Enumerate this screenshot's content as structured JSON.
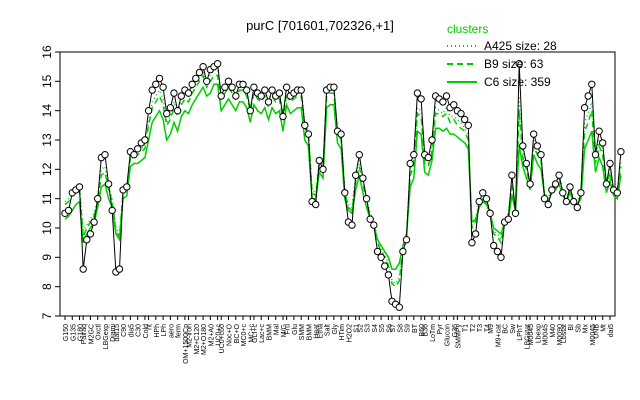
{
  "chart_data": {
    "type": "line",
    "title": "purC [701601,702326,+1]",
    "xlabel": "",
    "ylabel": "",
    "ylim": [
      7,
      16
    ],
    "yticks": [
      7,
      8,
      9,
      10,
      11,
      12,
      13,
      14,
      15,
      16
    ],
    "x_tick_labels": [
      "G150",
      "G135",
      "G180",
      "Pairaq",
      "M2GC",
      "Oxctl",
      "LBGexp",
      "Diami",
      "dat15",
      "C90",
      "dia5",
      "C30",
      "Cold",
      "nt",
      "HPh",
      "LPh",
      "aero",
      "ferm",
      "OM+1500Cp",
      "M2-iron",
      "M2+C120",
      "M2+O180",
      "M2+A0",
      "UC0+c",
      "UC0+c60",
      "Noc+O",
      "BC+O",
      "MC0+c",
      "MC+c",
      "GLI+c",
      "Lac+c",
      "BMM",
      "Mal",
      "M/G",
      "Fru",
      "Glu",
      "SMM",
      "BMM",
      "Heat",
      "Etha",
      "Salt",
      "Gly",
      "HTim",
      "H2O2",
      "S1",
      "S2",
      "S3",
      "S4",
      "S5",
      "S6",
      "S7",
      "S8",
      "S9",
      "BT",
      "B60",
      "B36",
      "LoTm",
      "Pyr",
      "Glucon",
      "G36",
      "SMMPy",
      "T1",
      "T2",
      "T3",
      "T4",
      "M9",
      "M9+cat",
      "BC",
      "Sw",
      "LPhT",
      "LBGstat",
      "M0045",
      "Lbexp",
      "M0045",
      "M40",
      "M0090",
      "Lbstat",
      "BI",
      "Sb",
      "Mx",
      "M0045",
      "UNB",
      "Mt",
      "dai5"
    ],
    "legend": {
      "title": "clusters",
      "placement": "top-right",
      "entries": [
        {
          "label": "A425 size: 28",
          "style": "dotted"
        },
        {
          "label": "B9 size: 63",
          "style": "dashed"
        },
        {
          "label": "C6 size: 359",
          "style": "solid"
        }
      ]
    },
    "colors": {
      "series": "#00cc00",
      "points": "#000000",
      "background": "#ffffff"
    },
    "n_conditions": 151,
    "series": [
      {
        "name": "purC",
        "role": "gene",
        "values": [
          10.5,
          10.6,
          11.2,
          11.3,
          11.4,
          8.6,
          9.6,
          9.8,
          10.2,
          11.0,
          12.4,
          12.5,
          11.5,
          10.6,
          8.5,
          8.6,
          11.3,
          11.4,
          12.6,
          12.5,
          12.7,
          12.9,
          13.0,
          14.0,
          14.7,
          14.9,
          15.1,
          14.8,
          13.9,
          14.1,
          14.6,
          14.0,
          14.5,
          14.7,
          14.6,
          14.9,
          15.1,
          15.3,
          15.5,
          15.0,
          15.4,
          15.5,
          15.6,
          14.5,
          14.8,
          15.0,
          14.8,
          14.5,
          14.9,
          14.9,
          14.7,
          14.0,
          14.8,
          14.6,
          14.5,
          14.7,
          14.3,
          14.7,
          14.5,
          14.6,
          13.8,
          14.8,
          14.5,
          14.6,
          14.7,
          14.7,
          13.5,
          13.2,
          10.9,
          10.8,
          12.3,
          12.0,
          14.7,
          14.8,
          14.8,
          13.3,
          13.2,
          11.2,
          10.2,
          10.1,
          11.8,
          12.5,
          11.7,
          11.0,
          10.3,
          10.1,
          9.2,
          9.0,
          8.7,
          8.4,
          7.5,
          7.4,
          7.3,
          9.2,
          9.6,
          12.2,
          12.5,
          14.6,
          14.4,
          12.5,
          12.4,
          13.0,
          14.5,
          14.4,
          14.3,
          14.5,
          14.1,
          14.2,
          14.0,
          13.9,
          13.7,
          13.5,
          9.5,
          9.8,
          10.9,
          11.2,
          11.0,
          10.5,
          9.4,
          9.2,
          9.0,
          10.2,
          10.3,
          11.8,
          10.5,
          15.6,
          12.8,
          12.2,
          11.5,
          13.2,
          12.8,
          12.5,
          11.0,
          10.8,
          11.3,
          11.5,
          11.8,
          11.2,
          10.9,
          11.4,
          10.9,
          10.7,
          11.2,
          14.1,
          14.5,
          14.9,
          12.5,
          13.3,
          12.9,
          11.5,
          12.2,
          11.3,
          11.2,
          12.6
        ]
      },
      {
        "name": "C6 size: 359",
        "role": "cluster",
        "values": [
          10.3,
          10.4,
          10.6,
          10.8,
          10.9,
          9.5,
          9.8,
          10.0,
          10.2,
          10.7,
          11.4,
          11.5,
          11.0,
          10.7,
          9.8,
          9.6,
          11.0,
          11.1,
          12.1,
          12.2,
          12.2,
          12.3,
          12.4,
          13.0,
          13.6,
          13.8,
          14.0,
          13.7,
          13.0,
          13.2,
          13.6,
          13.3,
          13.8,
          14.0,
          13.9,
          14.2,
          14.4,
          14.6,
          14.8,
          14.5,
          14.6,
          14.9,
          14.9,
          14.0,
          14.2,
          14.4,
          14.2,
          14.0,
          14.3,
          14.3,
          14.1,
          13.6,
          14.2,
          14.0,
          13.9,
          14.1,
          13.7,
          14.1,
          13.9,
          14.0,
          13.3,
          14.2,
          13.9,
          14.0,
          14.1,
          14.1,
          13.0,
          12.8,
          11.0,
          11.0,
          11.9,
          11.7,
          14.1,
          14.2,
          14.2,
          12.9,
          12.7,
          11.0,
          10.6,
          10.5,
          11.3,
          11.8,
          11.2,
          10.7,
          10.3,
          10.1,
          9.6,
          9.4,
          9.2,
          9.0,
          8.6,
          8.6,
          8.8,
          9.4,
          9.8,
          11.4,
          11.7,
          13.3,
          13.2,
          11.9,
          11.8,
          12.3,
          13.4,
          13.4,
          13.3,
          13.4,
          13.2,
          13.2,
          13.1,
          13.0,
          12.9,
          12.7,
          10.2,
          10.3,
          10.7,
          10.9,
          10.8,
          10.5,
          10.0,
          9.9,
          9.8,
          10.2,
          10.3,
          11.1,
          10.6,
          12.8,
          12.1,
          11.7,
          11.3,
          12.5,
          12.2,
          12.0,
          11.1,
          10.9,
          11.2,
          11.3,
          11.5,
          11.1,
          10.9,
          11.2,
          10.9,
          10.8,
          11.0,
          12.7,
          13.0,
          13.3,
          11.9,
          12.4,
          12.1,
          11.2,
          11.6,
          11.1,
          11.0,
          11.8
        ]
      },
      {
        "name": "B9 size: 63",
        "role": "cluster",
        "values": [
          10.8,
          10.9,
          11.1,
          11.2,
          11.3,
          9.7,
          10.0,
          10.2,
          10.4,
          10.9,
          11.8,
          11.9,
          11.3,
          10.9,
          9.9,
          9.7,
          11.2,
          11.3,
          12.4,
          12.4,
          12.5,
          12.6,
          12.7,
          13.5,
          14.1,
          14.3,
          14.5,
          14.2,
          13.5,
          13.7,
          14.1,
          13.8,
          14.2,
          14.4,
          14.3,
          14.6,
          14.8,
          15.0,
          15.2,
          14.8,
          15.0,
          15.2,
          15.2,
          14.4,
          14.6,
          14.8,
          14.6,
          14.4,
          14.7,
          14.7,
          14.5,
          14.0,
          14.6,
          14.4,
          14.3,
          14.5,
          14.1,
          14.5,
          14.3,
          14.4,
          13.7,
          14.6,
          14.3,
          14.4,
          14.5,
          14.5,
          13.4,
          13.2,
          11.2,
          11.1,
          12.2,
          12.0,
          14.5,
          14.6,
          14.6,
          13.2,
          13.0,
          11.2,
          10.7,
          10.6,
          11.6,
          12.1,
          11.5,
          10.9,
          10.4,
          10.2,
          9.5,
          9.2,
          9.0,
          8.7,
          8.1,
          8.0,
          8.2,
          9.3,
          9.7,
          11.8,
          12.1,
          13.9,
          13.8,
          12.2,
          12.1,
          12.6,
          13.9,
          13.9,
          13.8,
          13.9,
          13.6,
          13.7,
          13.5,
          13.4,
          13.3,
          13.0,
          10.0,
          10.2,
          10.8,
          11.0,
          10.9,
          10.5,
          9.8,
          9.7,
          9.5,
          10.2,
          10.4,
          11.4,
          10.6,
          14.0,
          12.4,
          12.0,
          11.4,
          12.8,
          12.5,
          12.3,
          11.1,
          10.9,
          11.3,
          11.4,
          11.7,
          11.2,
          10.9,
          11.3,
          10.9,
          10.8,
          11.1,
          13.3,
          13.6,
          14.0,
          12.2,
          12.8,
          12.5,
          11.4,
          11.9,
          11.2,
          11.1,
          12.1
        ]
      },
      {
        "name": "A425 size: 28",
        "role": "cluster",
        "values": [
          10.9,
          11.0,
          11.2,
          11.3,
          11.4,
          9.9,
          10.1,
          10.3,
          10.5,
          11.0,
          12.0,
          12.1,
          11.4,
          11.0,
          10.0,
          9.8,
          11.3,
          11.4,
          12.5,
          12.5,
          12.6,
          12.7,
          12.8,
          13.6,
          14.3,
          14.5,
          14.7,
          14.4,
          13.6,
          13.8,
          14.3,
          13.9,
          14.4,
          14.6,
          14.5,
          14.8,
          15.0,
          15.2,
          15.3,
          15.0,
          15.2,
          15.4,
          15.4,
          14.5,
          14.8,
          15.0,
          14.8,
          14.5,
          14.9,
          14.9,
          14.7,
          14.1,
          14.8,
          14.6,
          14.5,
          14.7,
          14.3,
          14.7,
          14.5,
          14.6,
          13.9,
          14.8,
          14.5,
          14.6,
          14.7,
          14.7,
          13.6,
          13.3,
          11.3,
          11.2,
          12.4,
          12.1,
          14.7,
          14.8,
          14.8,
          13.3,
          13.2,
          11.3,
          10.8,
          10.7,
          11.8,
          12.3,
          11.6,
          11.0,
          10.5,
          10.3,
          9.6,
          9.3,
          9.1,
          8.8,
          8.2,
          8.1,
          8.3,
          9.4,
          9.8,
          12.0,
          12.3,
          14.1,
          14.0,
          12.3,
          12.2,
          12.8,
          14.1,
          14.0,
          13.9,
          14.1,
          13.8,
          13.8,
          13.7,
          13.6,
          13.4,
          13.2,
          10.1,
          10.3,
          10.9,
          11.1,
          11.0,
          10.6,
          9.9,
          9.8,
          9.6,
          10.3,
          10.5,
          11.5,
          10.7,
          14.5,
          12.6,
          12.1,
          11.5,
          13.0,
          12.6,
          12.4,
          11.2,
          11.0,
          11.4,
          11.5,
          11.8,
          11.3,
          11.0,
          11.4,
          11.0,
          10.9,
          11.2,
          13.6,
          13.9,
          14.3,
          12.4,
          13.0,
          12.7,
          11.5,
          12.0,
          11.3,
          11.2,
          12.3
        ]
      }
    ]
  }
}
